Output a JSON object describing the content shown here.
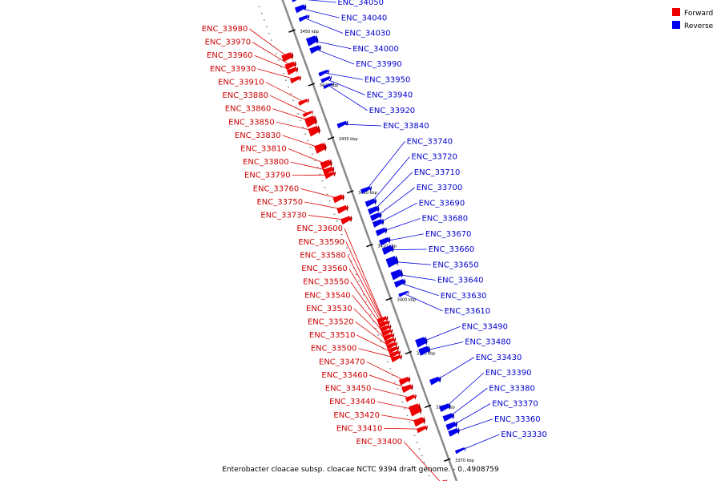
{
  "genome": {
    "caption": "Enterobacter cloacae subsp. cloacae NCTC 9394 draft genome. - 0..4908759",
    "range_start_kbp": 3366,
    "range_end_kbp": 3456
  },
  "legend": {
    "forward_label": "Forward",
    "reverse_label": "Reverse",
    "forward_color": "#ee0000",
    "reverse_color": "#0000ee"
  },
  "ticks": [
    {
      "label": "3450 kbp",
      "kbp": 3450
    },
    {
      "label": "3440 kbp",
      "kbp": 3440
    },
    {
      "label": "3430 kbp",
      "kbp": 3430
    },
    {
      "label": "3420 kbp",
      "kbp": 3420
    },
    {
      "label": "3410 kbp",
      "kbp": 3410
    },
    {
      "label": "3400 kbp",
      "kbp": 3400
    },
    {
      "label": "3390 kbp",
      "kbp": 3390
    },
    {
      "label": "3380 kbp",
      "kbp": 3380
    },
    {
      "label": "3370 kbp",
      "kbp": 3370
    }
  ],
  "forward_genes": [
    {
      "name": "ENC_33980",
      "kbp": 3446.0,
      "len": 1.2
    },
    {
      "name": "ENC_33970",
      "kbp": 3444.4,
      "len": 1.0
    },
    {
      "name": "ENC_33960",
      "kbp": 3443.4,
      "len": 0.9
    },
    {
      "name": "ENC_33930",
      "kbp": 3441.8,
      "len": 0.8
    },
    {
      "name": "ENC_33910",
      "kbp": 3437.6,
      "len": 0.7
    },
    {
      "name": "ENC_33880",
      "kbp": 3435.4,
      "len": 0.6
    },
    {
      "name": "ENC_33860",
      "kbp": 3434.0,
      "len": 1.6
    },
    {
      "name": "ENC_33850",
      "kbp": 3432.2,
      "len": 1.4
    },
    {
      "name": "ENC_33830",
      "kbp": 3429.0,
      "len": 1.4
    },
    {
      "name": "ENC_33810",
      "kbp": 3426.0,
      "len": 1.2
    },
    {
      "name": "ENC_33800",
      "kbp": 3424.8,
      "len": 1.0
    },
    {
      "name": "ENC_33790",
      "kbp": 3424.0,
      "len": 0.8
    },
    {
      "name": "ENC_33760",
      "kbp": 3419.6,
      "len": 1.0
    },
    {
      "name": "ENC_33750",
      "kbp": 3417.6,
      "len": 1.0
    },
    {
      "name": "ENC_33730",
      "kbp": 3415.6,
      "len": 1.0
    },
    {
      "name": "ENC_33600",
      "kbp": 3397.0,
      "len": 0.8
    },
    {
      "name": "ENC_33590",
      "kbp": 3396.2,
      "len": 0.8
    },
    {
      "name": "ENC_33580",
      "kbp": 3395.4,
      "len": 0.8
    },
    {
      "name": "ENC_33560",
      "kbp": 3394.6,
      "len": 0.8
    },
    {
      "name": "ENC_33550",
      "kbp": 3393.8,
      "len": 0.8
    },
    {
      "name": "ENC_33540",
      "kbp": 3393.0,
      "len": 0.8
    },
    {
      "name": "ENC_33530",
      "kbp": 3392.2,
      "len": 0.8
    },
    {
      "name": "ENC_33520",
      "kbp": 3391.4,
      "len": 0.8
    },
    {
      "name": "ENC_33510",
      "kbp": 3390.6,
      "len": 0.8
    },
    {
      "name": "ENC_33500",
      "kbp": 3389.8,
      "len": 0.8
    },
    {
      "name": "ENC_33470",
      "kbp": 3385.6,
      "len": 1.0
    },
    {
      "name": "ENC_33460",
      "kbp": 3384.2,
      "len": 1.0
    },
    {
      "name": "ENC_33450",
      "kbp": 3382.4,
      "len": 0.8
    },
    {
      "name": "ENC_33440",
      "kbp": 3380.2,
      "len": 1.8
    },
    {
      "name": "ENC_33420",
      "kbp": 3378.0,
      "len": 1.2
    },
    {
      "name": "ENC_33410",
      "kbp": 3376.6,
      "len": 0.8
    },
    {
      "name": "ENC_33400",
      "kbp": 3366.4,
      "len": 1.0
    }
  ],
  "reverse_genes": [
    {
      "name": "ENC_34050",
      "kbp": 3455.0,
      "len": 0.4
    },
    {
      "name": "ENC_34040",
      "kbp": 3453.2,
      "len": 1.0
    },
    {
      "name": "ENC_34030",
      "kbp": 3451.4,
      "len": 0.7
    },
    {
      "name": "ENC_34000",
      "kbp": 3447.2,
      "len": 1.4
    },
    {
      "name": "ENC_33990",
      "kbp": 3445.6,
      "len": 1.0
    },
    {
      "name": "ENC_33950",
      "kbp": 3441.2,
      "len": 0.7
    },
    {
      "name": "ENC_33940",
      "kbp": 3440.0,
      "len": 0.7
    },
    {
      "name": "ENC_33920",
      "kbp": 3438.8,
      "len": 0.5
    },
    {
      "name": "ENC_33840",
      "kbp": 3431.6,
      "len": 0.8
    },
    {
      "name": "ENC_33740",
      "kbp": 3419.4,
      "len": 0.8
    },
    {
      "name": "ENC_33720",
      "kbp": 3417.0,
      "len": 1.0
    },
    {
      "name": "ENC_33710",
      "kbp": 3415.6,
      "len": 1.0
    },
    {
      "name": "ENC_33700",
      "kbp": 3414.4,
      "len": 1.0
    },
    {
      "name": "ENC_33690",
      "kbp": 3413.2,
      "len": 1.0
    },
    {
      "name": "ENC_33680",
      "kbp": 3411.6,
      "len": 1.0
    },
    {
      "name": "ENC_33670",
      "kbp": 3409.8,
      "len": 1.0
    },
    {
      "name": "ENC_33660",
      "kbp": 3408.2,
      "len": 1.2
    },
    {
      "name": "ENC_33650",
      "kbp": 3406.0,
      "len": 1.6
    },
    {
      "name": "ENC_33640",
      "kbp": 3403.6,
      "len": 1.4
    },
    {
      "name": "ENC_33630",
      "kbp": 3402.0,
      "len": 1.0
    },
    {
      "name": "ENC_33610",
      "kbp": 3400.0,
      "len": 0.6
    },
    {
      "name": "ENC_33490",
      "kbp": 3391.0,
      "len": 1.4
    },
    {
      "name": "ENC_33480",
      "kbp": 3389.4,
      "len": 1.2
    },
    {
      "name": "ENC_33430",
      "kbp": 3383.8,
      "len": 1.0
    },
    {
      "name": "ENC_33390",
      "kbp": 3378.8,
      "len": 1.0
    },
    {
      "name": "ENC_33380",
      "kbp": 3377.0,
      "len": 1.0
    },
    {
      "name": "ENC_33370",
      "kbp": 3375.4,
      "len": 1.0
    },
    {
      "name": "ENC_33360",
      "kbp": 3374.2,
      "len": 1.0
    },
    {
      "name": "ENC_33330",
      "kbp": 3370.8,
      "len": 0.6
    }
  ]
}
